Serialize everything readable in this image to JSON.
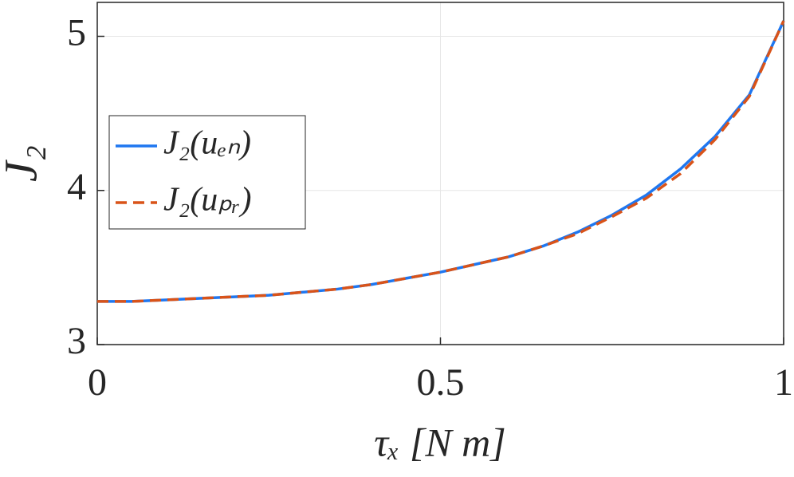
{
  "chart_data": {
    "type": "line",
    "x": [
      0,
      0.05,
      0.1,
      0.15,
      0.2,
      0.25,
      0.3,
      0.35,
      0.4,
      0.45,
      0.5,
      0.55,
      0.6,
      0.65,
      0.7,
      0.75,
      0.8,
      0.85,
      0.9,
      0.95,
      1
    ],
    "series": [
      {
        "name": "J₂(uₑₙ)",
        "color": "#1f77f0",
        "dash": false,
        "values": [
          3.28,
          3.28,
          3.29,
          3.3,
          3.31,
          3.32,
          3.34,
          3.36,
          3.39,
          3.43,
          3.47,
          3.52,
          3.57,
          3.64,
          3.73,
          3.84,
          3.97,
          4.14,
          4.35,
          4.62,
          5.1
        ]
      },
      {
        "name": "J₂(uₚᵣ)",
        "color": "#d95319",
        "dash": true,
        "values": [
          3.28,
          3.28,
          3.29,
          3.3,
          3.31,
          3.32,
          3.34,
          3.36,
          3.39,
          3.43,
          3.47,
          3.52,
          3.57,
          3.64,
          3.72,
          3.83,
          3.95,
          4.11,
          4.33,
          4.61,
          5.1
        ]
      }
    ],
    "xlabel": "τₓ [N m]",
    "ylabel": "J₂",
    "xlim": [
      0,
      1
    ],
    "ylim": [
      3,
      5.22
    ],
    "xticks": [
      0,
      0.5,
      1
    ],
    "yticks": [
      3,
      4,
      5
    ],
    "grid": true,
    "legend": "left"
  }
}
